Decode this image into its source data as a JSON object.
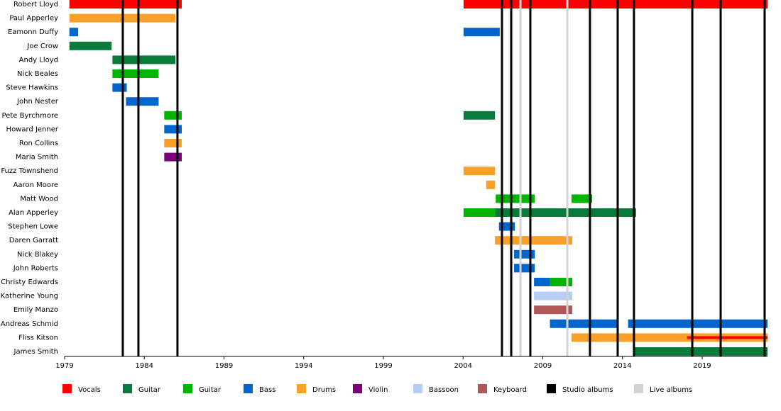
{
  "chart_data": {
    "type": "timeline",
    "xlim": [
      1979,
      2023.1
    ],
    "xticks": [
      1979,
      1984,
      1989,
      1994,
      1999,
      2004,
      2009,
      2014,
      2019
    ],
    "roles": [
      {
        "name": "Vocals",
        "color": "#ff0000"
      },
      {
        "name": "Guitar",
        "color": "#087a3a"
      },
      {
        "name": "Guitar",
        "color": "#00b400"
      },
      {
        "name": "Bass",
        "color": "#0066cc"
      },
      {
        "name": "Drums",
        "color": "#f9a02a"
      },
      {
        "name": "Violin",
        "color": "#7b007b"
      },
      {
        "name": "Bassoon",
        "color": "#b6cdf5"
      },
      {
        "name": "Keyboard",
        "color": "#b25656"
      }
    ],
    "album_lines": [
      {
        "name": "Studio albums",
        "color": "#000000",
        "x": [
          1982.65,
          1983.63,
          1986.08,
          2006.44,
          2007.02,
          2008.22,
          2011.96,
          2013.7,
          2014.72,
          2018.38,
          2020.16,
          2022.92
        ]
      },
      {
        "name": "Live albums",
        "color": "#d3d3d3",
        "x": [
          2007.6,
          2010.54
        ]
      }
    ],
    "members": [
      {
        "name": "Robert Lloyd",
        "spans": [
          {
            "role": 0,
            "start": 1979.3,
            "end": 1986.35
          },
          {
            "role": 0,
            "start": 2004.03,
            "end": 2023.1
          }
        ]
      },
      {
        "name": "Paul Apperley",
        "spans": [
          {
            "role": 4,
            "start": 1979.3,
            "end": 1985.95
          }
        ]
      },
      {
        "name": "Eamonn Duffy",
        "spans": [
          {
            "role": 3,
            "start": 1979.3,
            "end": 1979.85
          },
          {
            "role": 3,
            "start": 2004.03,
            "end": 2006.3
          }
        ]
      },
      {
        "name": "Joe Crow",
        "spans": [
          {
            "role": 1,
            "start": 1979.3,
            "end": 1981.95
          }
        ]
      },
      {
        "name": "Andy Lloyd",
        "spans": [
          {
            "role": 1,
            "start": 1982.0,
            "end": 1985.95
          }
        ]
      },
      {
        "name": "Nick Beales",
        "spans": [
          {
            "role": 2,
            "start": 1982.0,
            "end": 1984.9
          }
        ]
      },
      {
        "name": "Steve Hawkins",
        "spans": [
          {
            "role": 3,
            "start": 1982.0,
            "end": 1982.9
          }
        ]
      },
      {
        "name": "John Nester",
        "spans": [
          {
            "role": 3,
            "start": 1982.85,
            "end": 1984.9
          }
        ]
      },
      {
        "name": "Pete Byrchmore",
        "spans": [
          {
            "role": 2,
            "start": 1985.25,
            "end": 1986.35
          },
          {
            "role": 1,
            "start": 2004.03,
            "end": 2006.0
          }
        ]
      },
      {
        "name": "Howard Jenner",
        "spans": [
          {
            "role": 3,
            "start": 1985.25,
            "end": 1986.35
          }
        ]
      },
      {
        "name": "Ron Collins",
        "spans": [
          {
            "role": 4,
            "start": 1985.25,
            "end": 1986.35
          }
        ]
      },
      {
        "name": "Maria Smith",
        "spans": [
          {
            "role": 5,
            "start": 1985.25,
            "end": 1986.35
          }
        ]
      },
      {
        "name": "Fuzz Townshend",
        "spans": [
          {
            "role": 4,
            "start": 2004.03,
            "end": 2006.0
          }
        ]
      },
      {
        "name": "Aaron Moore",
        "spans": [
          {
            "role": 4,
            "start": 2005.45,
            "end": 2006.0
          }
        ]
      },
      {
        "name": "Matt Wood",
        "spans": [
          {
            "role": 2,
            "start": 2006.05,
            "end": 2008.5
          },
          {
            "role": 2,
            "start": 2010.8,
            "end": 2012.1
          }
        ]
      },
      {
        "name": "Alan Apperley",
        "spans": [
          {
            "role": 2,
            "start": 2004.03,
            "end": 2006.0
          },
          {
            "role": 1,
            "start": 2006.0,
            "end": 2014.85
          }
        ]
      },
      {
        "name": "Stephen Lowe",
        "spans": [
          {
            "role": 3,
            "start": 2006.25,
            "end": 2007.25
          }
        ]
      },
      {
        "name": "Daren Garratt",
        "spans": [
          {
            "role": 4,
            "start": 2006.0,
            "end": 2010.85
          }
        ]
      },
      {
        "name": "Nick Blakey",
        "spans": [
          {
            "role": 3,
            "start": 2007.2,
            "end": 2008.5
          }
        ]
      },
      {
        "name": "John Roberts",
        "spans": [
          {
            "role": 3,
            "start": 2007.2,
            "end": 2008.5
          }
        ]
      },
      {
        "name": "Christy Edwards",
        "spans": [
          {
            "role": 3,
            "start": 2008.45,
            "end": 2009.45
          },
          {
            "role": 2,
            "start": 2009.45,
            "end": 2010.85
          }
        ]
      },
      {
        "name": "Katherine Young",
        "spans": [
          {
            "role": 6,
            "start": 2008.45,
            "end": 2010.85
          }
        ]
      },
      {
        "name": "Emily Manzo",
        "spans": [
          {
            "role": 7,
            "start": 2008.45,
            "end": 2010.85
          }
        ]
      },
      {
        "name": "Andreas Schmid",
        "spans": [
          {
            "role": 3,
            "start": 2009.45,
            "end": 2013.7
          },
          {
            "role": 3,
            "start": 2014.35,
            "end": 2023.1
          }
        ]
      },
      {
        "name": "Fliss Kitson",
        "spans": [
          {
            "role": 4,
            "start": 2010.8,
            "end": 2023.1
          },
          {
            "role": 0,
            "start": 2018.05,
            "end": 2023.1
          }
        ]
      },
      {
        "name": "James Smith",
        "spans": [
          {
            "role": 1,
            "start": 2014.75,
            "end": 2023.1
          }
        ]
      }
    ]
  }
}
